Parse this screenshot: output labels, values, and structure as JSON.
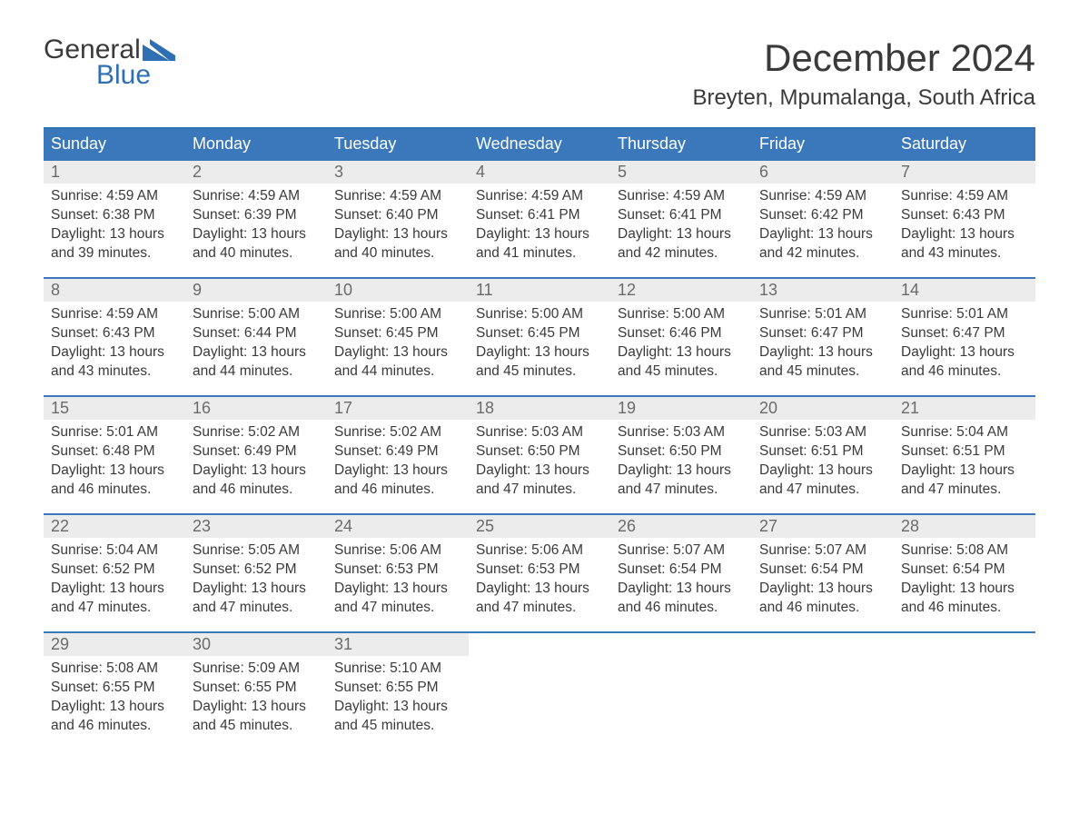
{
  "brand": {
    "word1": "General",
    "word2": "Blue",
    "text_color": "#3a3a3a",
    "accent_color": "#2f6fb4"
  },
  "title": {
    "month": "December 2024",
    "location": "Breyten, Mpumalanga, South Africa"
  },
  "colors": {
    "header_bg": "#3a78bb",
    "header_text": "#ffffff",
    "week_divider": "#3a78bb",
    "daynum_bg": "#ececec",
    "daynum_text": "#6b6b6b",
    "body_text": "#3a3a3a",
    "page_bg": "#ffffff"
  },
  "typography": {
    "month_fontsize": 42,
    "location_fontsize": 24,
    "dayheader_fontsize": 18,
    "daynum_fontsize": 18,
    "body_fontsize": 15.5,
    "logo_fontsize": 30
  },
  "layout": {
    "columns": 7,
    "rows": 5,
    "cell_min_height": 128
  },
  "day_headers": [
    "Sunday",
    "Monday",
    "Tuesday",
    "Wednesday",
    "Thursday",
    "Friday",
    "Saturday"
  ],
  "weeks": [
    [
      {
        "num": "1",
        "sunrise": "Sunrise: 4:59 AM",
        "sunset": "Sunset: 6:38 PM",
        "dl1": "Daylight: 13 hours",
        "dl2": "and 39 minutes."
      },
      {
        "num": "2",
        "sunrise": "Sunrise: 4:59 AM",
        "sunset": "Sunset: 6:39 PM",
        "dl1": "Daylight: 13 hours",
        "dl2": "and 40 minutes."
      },
      {
        "num": "3",
        "sunrise": "Sunrise: 4:59 AM",
        "sunset": "Sunset: 6:40 PM",
        "dl1": "Daylight: 13 hours",
        "dl2": "and 40 minutes."
      },
      {
        "num": "4",
        "sunrise": "Sunrise: 4:59 AM",
        "sunset": "Sunset: 6:41 PM",
        "dl1": "Daylight: 13 hours",
        "dl2": "and 41 minutes."
      },
      {
        "num": "5",
        "sunrise": "Sunrise: 4:59 AM",
        "sunset": "Sunset: 6:41 PM",
        "dl1": "Daylight: 13 hours",
        "dl2": "and 42 minutes."
      },
      {
        "num": "6",
        "sunrise": "Sunrise: 4:59 AM",
        "sunset": "Sunset: 6:42 PM",
        "dl1": "Daylight: 13 hours",
        "dl2": "and 42 minutes."
      },
      {
        "num": "7",
        "sunrise": "Sunrise: 4:59 AM",
        "sunset": "Sunset: 6:43 PM",
        "dl1": "Daylight: 13 hours",
        "dl2": "and 43 minutes."
      }
    ],
    [
      {
        "num": "8",
        "sunrise": "Sunrise: 4:59 AM",
        "sunset": "Sunset: 6:43 PM",
        "dl1": "Daylight: 13 hours",
        "dl2": "and 43 minutes."
      },
      {
        "num": "9",
        "sunrise": "Sunrise: 5:00 AM",
        "sunset": "Sunset: 6:44 PM",
        "dl1": "Daylight: 13 hours",
        "dl2": "and 44 minutes."
      },
      {
        "num": "10",
        "sunrise": "Sunrise: 5:00 AM",
        "sunset": "Sunset: 6:45 PM",
        "dl1": "Daylight: 13 hours",
        "dl2": "and 44 minutes."
      },
      {
        "num": "11",
        "sunrise": "Sunrise: 5:00 AM",
        "sunset": "Sunset: 6:45 PM",
        "dl1": "Daylight: 13 hours",
        "dl2": "and 45 minutes."
      },
      {
        "num": "12",
        "sunrise": "Sunrise: 5:00 AM",
        "sunset": "Sunset: 6:46 PM",
        "dl1": "Daylight: 13 hours",
        "dl2": "and 45 minutes."
      },
      {
        "num": "13",
        "sunrise": "Sunrise: 5:01 AM",
        "sunset": "Sunset: 6:47 PM",
        "dl1": "Daylight: 13 hours",
        "dl2": "and 45 minutes."
      },
      {
        "num": "14",
        "sunrise": "Sunrise: 5:01 AM",
        "sunset": "Sunset: 6:47 PM",
        "dl1": "Daylight: 13 hours",
        "dl2": "and 46 minutes."
      }
    ],
    [
      {
        "num": "15",
        "sunrise": "Sunrise: 5:01 AM",
        "sunset": "Sunset: 6:48 PM",
        "dl1": "Daylight: 13 hours",
        "dl2": "and 46 minutes."
      },
      {
        "num": "16",
        "sunrise": "Sunrise: 5:02 AM",
        "sunset": "Sunset: 6:49 PM",
        "dl1": "Daylight: 13 hours",
        "dl2": "and 46 minutes."
      },
      {
        "num": "17",
        "sunrise": "Sunrise: 5:02 AM",
        "sunset": "Sunset: 6:49 PM",
        "dl1": "Daylight: 13 hours",
        "dl2": "and 46 minutes."
      },
      {
        "num": "18",
        "sunrise": "Sunrise: 5:03 AM",
        "sunset": "Sunset: 6:50 PM",
        "dl1": "Daylight: 13 hours",
        "dl2": "and 47 minutes."
      },
      {
        "num": "19",
        "sunrise": "Sunrise: 5:03 AM",
        "sunset": "Sunset: 6:50 PM",
        "dl1": "Daylight: 13 hours",
        "dl2": "and 47 minutes."
      },
      {
        "num": "20",
        "sunrise": "Sunrise: 5:03 AM",
        "sunset": "Sunset: 6:51 PM",
        "dl1": "Daylight: 13 hours",
        "dl2": "and 47 minutes."
      },
      {
        "num": "21",
        "sunrise": "Sunrise: 5:04 AM",
        "sunset": "Sunset: 6:51 PM",
        "dl1": "Daylight: 13 hours",
        "dl2": "and 47 minutes."
      }
    ],
    [
      {
        "num": "22",
        "sunrise": "Sunrise: 5:04 AM",
        "sunset": "Sunset: 6:52 PM",
        "dl1": "Daylight: 13 hours",
        "dl2": "and 47 minutes."
      },
      {
        "num": "23",
        "sunrise": "Sunrise: 5:05 AM",
        "sunset": "Sunset: 6:52 PM",
        "dl1": "Daylight: 13 hours",
        "dl2": "and 47 minutes."
      },
      {
        "num": "24",
        "sunrise": "Sunrise: 5:06 AM",
        "sunset": "Sunset: 6:53 PM",
        "dl1": "Daylight: 13 hours",
        "dl2": "and 47 minutes."
      },
      {
        "num": "25",
        "sunrise": "Sunrise: 5:06 AM",
        "sunset": "Sunset: 6:53 PM",
        "dl1": "Daylight: 13 hours",
        "dl2": "and 47 minutes."
      },
      {
        "num": "26",
        "sunrise": "Sunrise: 5:07 AM",
        "sunset": "Sunset: 6:54 PM",
        "dl1": "Daylight: 13 hours",
        "dl2": "and 46 minutes."
      },
      {
        "num": "27",
        "sunrise": "Sunrise: 5:07 AM",
        "sunset": "Sunset: 6:54 PM",
        "dl1": "Daylight: 13 hours",
        "dl2": "and 46 minutes."
      },
      {
        "num": "28",
        "sunrise": "Sunrise: 5:08 AM",
        "sunset": "Sunset: 6:54 PM",
        "dl1": "Daylight: 13 hours",
        "dl2": "and 46 minutes."
      }
    ],
    [
      {
        "num": "29",
        "sunrise": "Sunrise: 5:08 AM",
        "sunset": "Sunset: 6:55 PM",
        "dl1": "Daylight: 13 hours",
        "dl2": "and 46 minutes."
      },
      {
        "num": "30",
        "sunrise": "Sunrise: 5:09 AM",
        "sunset": "Sunset: 6:55 PM",
        "dl1": "Daylight: 13 hours",
        "dl2": "and 45 minutes."
      },
      {
        "num": "31",
        "sunrise": "Sunrise: 5:10 AM",
        "sunset": "Sunset: 6:55 PM",
        "dl1": "Daylight: 13 hours",
        "dl2": "and 45 minutes."
      },
      {
        "empty": true
      },
      {
        "empty": true
      },
      {
        "empty": true
      },
      {
        "empty": true
      }
    ]
  ]
}
